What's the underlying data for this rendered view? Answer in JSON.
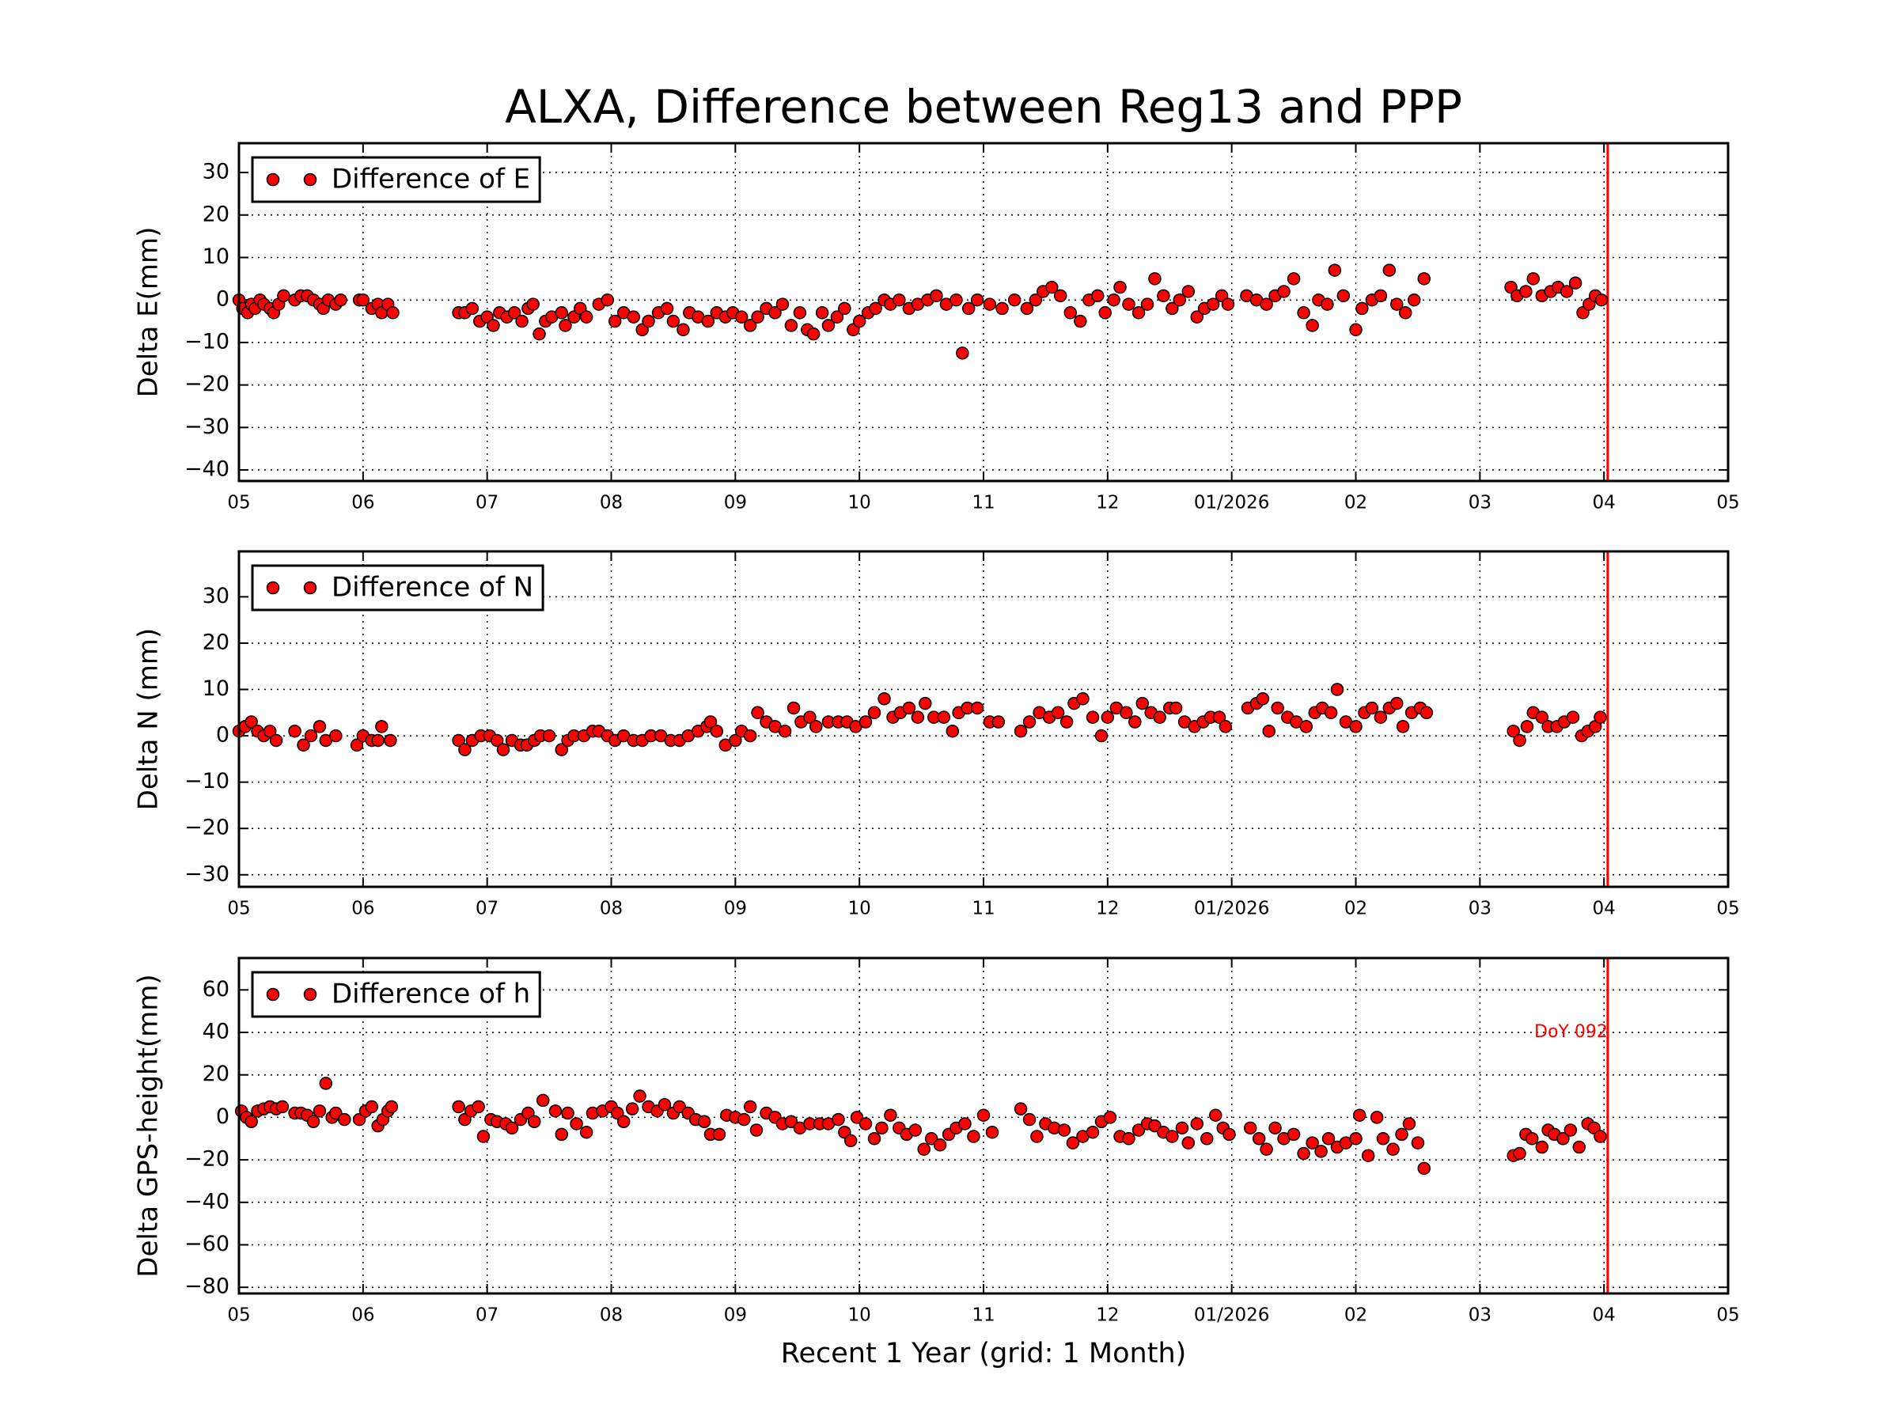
{
  "title": "ALXA, Difference between Reg13 and PPP",
  "chart_data": [
    {
      "type": "scatter",
      "ylabel": "Delta E(mm)",
      "grid": true,
      "legend": "upper left",
      "xlim": [
        0,
        12
      ],
      "ylim": [
        -42.6,
        36.9
      ],
      "xticks": [
        {
          "value": 0,
          "label": "05"
        },
        {
          "value": 1,
          "label": "06"
        },
        {
          "value": 2,
          "label": "07"
        },
        {
          "value": 3,
          "label": "08"
        },
        {
          "value": 4,
          "label": "09"
        },
        {
          "value": 5,
          "label": "10"
        },
        {
          "value": 6,
          "label": "11"
        },
        {
          "value": 7,
          "label": "12"
        },
        {
          "value": 8,
          "label": "01/2026"
        },
        {
          "value": 9,
          "label": "02"
        },
        {
          "value": 10,
          "label": "03"
        },
        {
          "value": 11,
          "label": "04"
        },
        {
          "value": 12,
          "label": "05"
        }
      ],
      "yticks": [
        {
          "value": -40,
          "label": "−40"
        },
        {
          "value": -30,
          "label": "−30"
        },
        {
          "value": -20,
          "label": "−20"
        },
        {
          "value": -10,
          "label": "−10"
        },
        0,
        10,
        20,
        30
      ],
      "vline": {
        "x": 11.03,
        "color": "#ff0000"
      },
      "x": [
        0,
        0.03,
        0.07,
        0.1,
        0.13,
        0.17,
        0.2,
        0.25,
        0.28,
        0.32,
        0.36,
        0.45,
        0.5,
        0.55,
        0.6,
        0.65,
        0.68,
        0.72,
        0.78,
        0.82,
        0.97,
        1.0,
        1.07,
        1.12,
        1.15,
        1.2,
        1.24,
        1.77,
        1.82,
        1.88,
        1.94,
        2.0,
        2.05,
        2.1,
        2.16,
        2.22,
        2.28,
        2.33,
        2.37,
        2.42,
        2.47,
        2.52,
        2.6,
        2.63,
        2.7,
        2.75,
        2.8,
        2.9,
        2.97,
        3.03,
        3.1,
        3.18,
        3.25,
        3.3,
        3.38,
        3.45,
        3.5,
        3.58,
        3.63,
        3.7,
        3.78,
        3.85,
        3.92,
        3.98,
        4.05,
        4.12,
        4.18,
        4.25,
        4.32,
        4.38,
        4.45,
        4.52,
        4.58,
        4.63,
        4.7,
        4.75,
        4.82,
        4.88,
        4.95,
        5.0,
        5.07,
        5.13,
        5.2,
        5.25,
        5.32,
        5.4,
        5.47,
        5.55,
        5.62,
        5.7,
        5.78,
        5.83,
        5.88,
        5.95,
        6.05,
        6.15,
        6.25,
        6.35,
        6.42,
        6.48,
        6.55,
        6.62,
        6.7,
        6.78,
        6.85,
        6.92,
        6.98,
        7.05,
        7.1,
        7.17,
        7.25,
        7.32,
        7.38,
        7.45,
        7.52,
        7.58,
        7.65,
        7.72,
        7.78,
        7.85,
        7.92,
        7.97,
        8.12,
        8.2,
        8.28,
        8.35,
        8.42,
        8.5,
        8.58,
        8.65,
        8.7,
        8.77,
        8.83,
        8.9,
        9.0,
        9.05,
        9.13,
        9.2,
        9.27,
        9.33,
        9.4,
        9.47,
        9.55,
        10.25,
        10.3,
        10.37,
        10.43,
        10.5,
        10.57,
        10.63,
        10.7,
        10.77,
        10.83,
        10.88,
        10.93,
        10.98
      ],
      "series": [
        {
          "name": "Difference of E",
          "color": "#ff0000",
          "values": [
            0,
            -2,
            -3,
            -1,
            -2,
            0,
            -1,
            -2,
            -3,
            -1,
            1,
            0,
            1,
            1,
            0,
            -1,
            -2,
            0,
            -1,
            0,
            0,
            0,
            -2,
            -1,
            -3,
            -1,
            -3,
            -3,
            -3,
            -2,
            -5,
            -4,
            -6,
            -3,
            -4,
            -3,
            -5,
            -2,
            -1,
            -8,
            -5,
            -4,
            -3,
            -6,
            -4,
            -2,
            -4,
            -1,
            0,
            -5,
            -3,
            -4,
            -7,
            -5,
            -3,
            -2,
            -5,
            -7,
            -3,
            -4,
            -5,
            -3,
            -4,
            -3,
            -4,
            -6,
            -4,
            -2,
            -3,
            -1,
            -6,
            -3,
            -7,
            -8,
            -3,
            -6,
            -4,
            -2,
            -7,
            -5,
            -3,
            -2,
            0,
            -1,
            0,
            -2,
            -1,
            0,
            1,
            -1,
            0,
            -12.5,
            -2,
            0,
            -1,
            -2,
            0,
            -2,
            0,
            2,
            3,
            1,
            -3,
            -5,
            0,
            1,
            -3,
            0,
            3,
            -1,
            -3,
            -1,
            5,
            1,
            -2,
            0,
            2,
            -4,
            -2,
            -1,
            1,
            -1,
            1,
            0,
            -1,
            1,
            2,
            5,
            -3,
            -6,
            0,
            -1,
            7,
            1,
            -7,
            -2,
            0,
            1,
            7,
            -1,
            -3,
            0,
            5,
            3,
            1,
            2,
            5,
            1,
            2,
            3,
            2,
            4,
            -3,
            -1,
            1,
            0
          ]
        }
      ]
    },
    {
      "type": "scatter",
      "ylabel": "Delta N (mm)",
      "grid": true,
      "legend": "upper left",
      "xlim": [
        0,
        12
      ],
      "ylim": [
        -32.6,
        39.8
      ],
      "xticks": [
        {
          "value": 0,
          "label": "05"
        },
        {
          "value": 1,
          "label": "06"
        },
        {
          "value": 2,
          "label": "07"
        },
        {
          "value": 3,
          "label": "08"
        },
        {
          "value": 4,
          "label": "09"
        },
        {
          "value": 5,
          "label": "10"
        },
        {
          "value": 6,
          "label": "11"
        },
        {
          "value": 7,
          "label": "12"
        },
        {
          "value": 8,
          "label": "01/2026"
        },
        {
          "value": 9,
          "label": "02"
        },
        {
          "value": 10,
          "label": "03"
        },
        {
          "value": 11,
          "label": "04"
        },
        {
          "value": 12,
          "label": "05"
        }
      ],
      "yticks": [
        {
          "value": -30,
          "label": "−30"
        },
        {
          "value": -20,
          "label": "−20"
        },
        {
          "value": -10,
          "label": "−10"
        },
        0,
        10,
        20,
        30
      ],
      "vline": {
        "x": 11.03,
        "color": "#ff0000"
      },
      "x": [
        0,
        0.05,
        0.1,
        0.15,
        0.2,
        0.25,
        0.3,
        0.45,
        0.52,
        0.58,
        0.65,
        0.7,
        0.78,
        0.95,
        1.0,
        1.07,
        1.12,
        1.15,
        1.22,
        1.77,
        1.82,
        1.88,
        1.95,
        2.02,
        2.08,
        2.13,
        2.2,
        2.27,
        2.32,
        2.38,
        2.43,
        2.5,
        2.6,
        2.65,
        2.7,
        2.78,
        2.85,
        2.9,
        2.97,
        3.03,
        3.1,
        3.18,
        3.25,
        3.32,
        3.4,
        3.48,
        3.55,
        3.62,
        3.7,
        3.77,
        3.8,
        3.85,
        3.92,
        4.0,
        4.05,
        4.12,
        4.18,
        4.25,
        4.32,
        4.4,
        4.47,
        4.53,
        4.6,
        4.65,
        4.75,
        4.83,
        4.9,
        4.97,
        5.05,
        5.12,
        5.2,
        5.27,
        5.33,
        5.4,
        5.47,
        5.53,
        5.6,
        5.68,
        5.75,
        5.8,
        5.87,
        5.95,
        6.05,
        6.12,
        6.3,
        6.37,
        6.45,
        6.53,
        6.6,
        6.67,
        6.73,
        6.8,
        6.88,
        6.95,
        7.0,
        7.07,
        7.15,
        7.22,
        7.28,
        7.35,
        7.42,
        7.5,
        7.55,
        7.62,
        7.7,
        7.77,
        7.83,
        7.9,
        7.95,
        8.13,
        8.2,
        8.25,
        8.3,
        8.37,
        8.45,
        8.52,
        8.6,
        8.67,
        8.73,
        8.8,
        8.85,
        8.92,
        9.0,
        9.07,
        9.13,
        9.2,
        9.27,
        9.33,
        9.38,
        9.45,
        9.52,
        9.57,
        10.27,
        10.32,
        10.38,
        10.43,
        10.5,
        10.55,
        10.62,
        10.68,
        10.75,
        10.82,
        10.87,
        10.93,
        10.97
      ],
      "series": [
        {
          "name": "Difference of N",
          "color": "#ff0000",
          "values": [
            1,
            2,
            3,
            1,
            0,
            1,
            -1,
            1,
            -2,
            0,
            2,
            -1,
            0,
            -2,
            0,
            -1,
            -1,
            2,
            -1,
            -1,
            -3,
            -1,
            0,
            0,
            -1,
            -3,
            -1,
            -2,
            -2,
            -1,
            0,
            0,
            -3,
            -1,
            0,
            0,
            1,
            1,
            0,
            -1,
            0,
            -1,
            -1,
            0,
            0,
            -1,
            -1,
            0,
            1,
            2,
            3,
            1,
            -2,
            -1,
            1,
            0,
            5,
            3,
            2,
            1,
            6,
            3,
            4,
            2,
            3,
            3,
            3,
            2,
            3,
            5,
            8,
            4,
            5,
            6,
            4,
            7,
            4,
            4,
            1,
            5,
            6,
            6,
            3,
            3,
            1,
            3,
            5,
            4,
            5,
            3,
            7,
            8,
            4,
            0,
            4,
            6,
            5,
            3,
            7,
            5,
            4,
            6,
            6,
            3,
            2,
            3,
            4,
            4,
            2,
            6,
            7,
            8,
            1,
            6,
            4,
            3,
            2,
            5,
            6,
            5,
            10,
            3,
            2,
            5,
            6,
            4,
            6,
            7,
            2,
            5,
            6,
            5,
            1,
            -1,
            2,
            5,
            4,
            2,
            2,
            3,
            4,
            0,
            1,
            2,
            4
          ]
        }
      ]
    },
    {
      "type": "scatter",
      "ylabel": "Delta GPS-height(mm)",
      "xlabel": "Recent 1 Year (grid: 1 Month)",
      "grid": true,
      "legend": "upper left",
      "xlim": [
        0,
        12
      ],
      "ylim": [
        -82.9,
        75
      ],
      "xticks": [
        {
          "value": 0,
          "label": "05"
        },
        {
          "value": 1,
          "label": "06"
        },
        {
          "value": 2,
          "label": "07"
        },
        {
          "value": 3,
          "label": "08"
        },
        {
          "value": 4,
          "label": "09"
        },
        {
          "value": 5,
          "label": "10"
        },
        {
          "value": 6,
          "label": "11"
        },
        {
          "value": 7,
          "label": "12"
        },
        {
          "value": 8,
          "label": "01/2026"
        },
        {
          "value": 9,
          "label": "02"
        },
        {
          "value": 10,
          "label": "03"
        },
        {
          "value": 11,
          "label": "04"
        },
        {
          "value": 12,
          "label": "05"
        }
      ],
      "yticks": [
        {
          "value": -80,
          "label": "−80"
        },
        {
          "value": -60,
          "label": "−60"
        },
        {
          "value": -40,
          "label": "−40"
        },
        {
          "value": -20,
          "label": "−20"
        },
        0,
        20,
        40,
        60
      ],
      "vline": {
        "x": 11.03,
        "color": "#ff0000"
      },
      "annotation": {
        "text": "DoY 092",
        "x": 11.03,
        "y": 40,
        "color": "#ff0000"
      },
      "x": [
        0.02,
        0.06,
        0.1,
        0.15,
        0.2,
        0.25,
        0.3,
        0.35,
        0.45,
        0.5,
        0.55,
        0.6,
        0.65,
        0.7,
        0.75,
        0.78,
        0.85,
        0.97,
        1.02,
        1.07,
        1.12,
        1.16,
        1.2,
        1.23,
        1.77,
        1.82,
        1.87,
        1.93,
        1.97,
        2.03,
        2.08,
        2.15,
        2.2,
        2.27,
        2.33,
        2.38,
        2.45,
        2.55,
        2.6,
        2.65,
        2.72,
        2.8,
        2.85,
        2.93,
        3.0,
        3.05,
        3.1,
        3.17,
        3.23,
        3.3,
        3.37,
        3.43,
        3.5,
        3.55,
        3.62,
        3.68,
        3.75,
        3.8,
        3.87,
        3.93,
        4.0,
        4.07,
        4.12,
        4.17,
        4.25,
        4.32,
        4.38,
        4.45,
        4.52,
        4.6,
        4.68,
        4.75,
        4.83,
        4.88,
        4.93,
        4.98,
        5.05,
        5.12,
        5.18,
        5.25,
        5.32,
        5.38,
        5.45,
        5.52,
        5.58,
        5.65,
        5.72,
        5.78,
        5.85,
        5.92,
        6.0,
        6.07,
        6.3,
        6.37,
        6.43,
        6.5,
        6.57,
        6.65,
        6.72,
        6.8,
        6.88,
        6.95,
        7.02,
        7.1,
        7.17,
        7.25,
        7.32,
        7.38,
        7.45,
        7.52,
        7.6,
        7.65,
        7.72,
        7.8,
        7.87,
        7.93,
        7.98,
        8.15,
        8.22,
        8.28,
        8.35,
        8.42,
        8.5,
        8.58,
        8.65,
        8.72,
        8.78,
        8.85,
        8.92,
        9.0,
        9.03,
        9.1,
        9.17,
        9.22,
        9.3,
        9.37,
        9.43,
        9.5,
        9.55,
        10.27,
        10.32,
        10.37,
        10.42,
        10.5,
        10.55,
        10.6,
        10.67,
        10.73,
        10.8,
        10.87,
        10.92,
        10.97
      ],
      "series": [
        {
          "name": "Difference of h",
          "color": "#ff0000",
          "values": [
            3,
            0,
            -2,
            3,
            4,
            5,
            4,
            5,
            2,
            2,
            1,
            -2,
            3,
            16,
            0,
            2,
            -1,
            -1,
            3,
            5,
            -4,
            -1,
            3,
            5,
            5,
            -1,
            3,
            5,
            -9,
            -1,
            -2,
            -3,
            -5,
            -1,
            2,
            -2,
            8,
            3,
            -8,
            2,
            -3,
            -7,
            2,
            3,
            5,
            2,
            -2,
            4,
            10,
            5,
            3,
            6,
            2,
            5,
            2,
            -1,
            -2,
            -8,
            -8,
            1,
            0,
            -1,
            5,
            -6,
            2,
            0,
            -3,
            -2,
            -5,
            -3,
            -3,
            -3,
            -1,
            -7,
            -11,
            0,
            -3,
            -10,
            -5,
            1,
            -5,
            -8,
            -6,
            -15,
            -10,
            -13,
            -8,
            -5,
            -3,
            -9,
            1,
            -7,
            4,
            -1,
            -9,
            -3,
            -5,
            -6,
            -12,
            -9,
            -7,
            -2,
            0,
            -9,
            -10,
            -6,
            -3,
            -4,
            -7,
            -9,
            -5,
            -12,
            -3,
            -10,
            1,
            -5,
            -8,
            -5,
            -10,
            -15,
            -5,
            -10,
            -8,
            -17,
            -12,
            -16,
            -10,
            -14,
            -12,
            -10,
            1,
            -18,
            0,
            -10,
            -15,
            -8,
            -3,
            -12,
            -24,
            -18,
            -17,
            -8,
            -10,
            -14,
            -6,
            -8,
            -10,
            -6,
            -14,
            -3,
            -5,
            -9
          ]
        }
      ]
    }
  ]
}
